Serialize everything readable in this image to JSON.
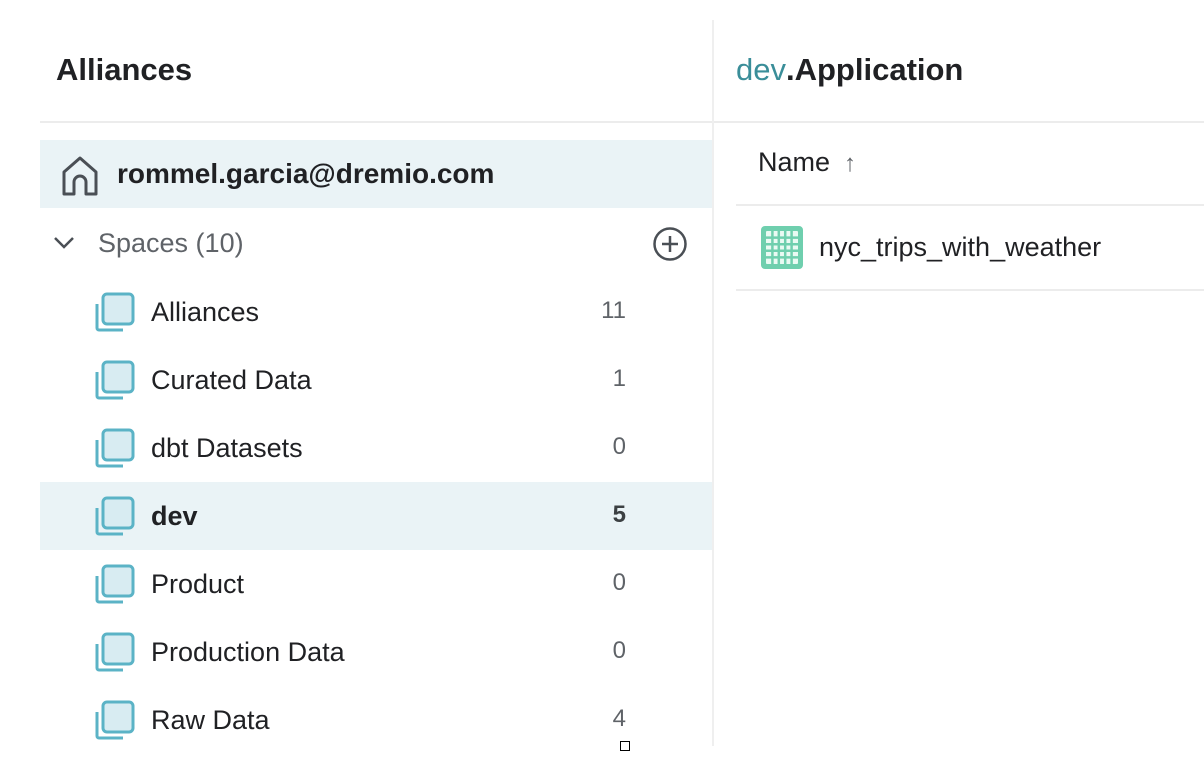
{
  "left_panel": {
    "title": "Alliances",
    "home": {
      "label": "rommel.garcia@dremio.com",
      "icon": "home-icon"
    },
    "spaces_header": {
      "label": "Spaces (10)",
      "expand_icon": "chevron-down-icon",
      "add_icon": "plus-circle-icon"
    },
    "spaces": [
      {
        "label": "Alliances",
        "count": "11",
        "selected": false
      },
      {
        "label": "Curated Data",
        "count": "1",
        "selected": false
      },
      {
        "label": "dbt Datasets",
        "count": "0",
        "selected": false
      },
      {
        "label": "dev",
        "count": "5",
        "selected": true
      },
      {
        "label": "Product",
        "count": "0",
        "selected": false
      },
      {
        "label": "Production Data",
        "count": "0",
        "selected": false
      },
      {
        "label": "Raw Data",
        "count": "4",
        "selected": false
      }
    ]
  },
  "right_panel": {
    "breadcrumb_parent": "dev",
    "title": ".Application",
    "column_header": "Name",
    "sort_icon": "arrow-up-icon",
    "sort_glyph": "↑",
    "rows": [
      {
        "label": "nyc_trips_with_weather",
        "icon": "table-dataset-icon"
      }
    ]
  },
  "colors": {
    "accent": "#3a8e99",
    "selected_bg": "#eaf3f6",
    "space_icon": "#5bb3c6",
    "dataset_icon": "#6fcfae"
  }
}
